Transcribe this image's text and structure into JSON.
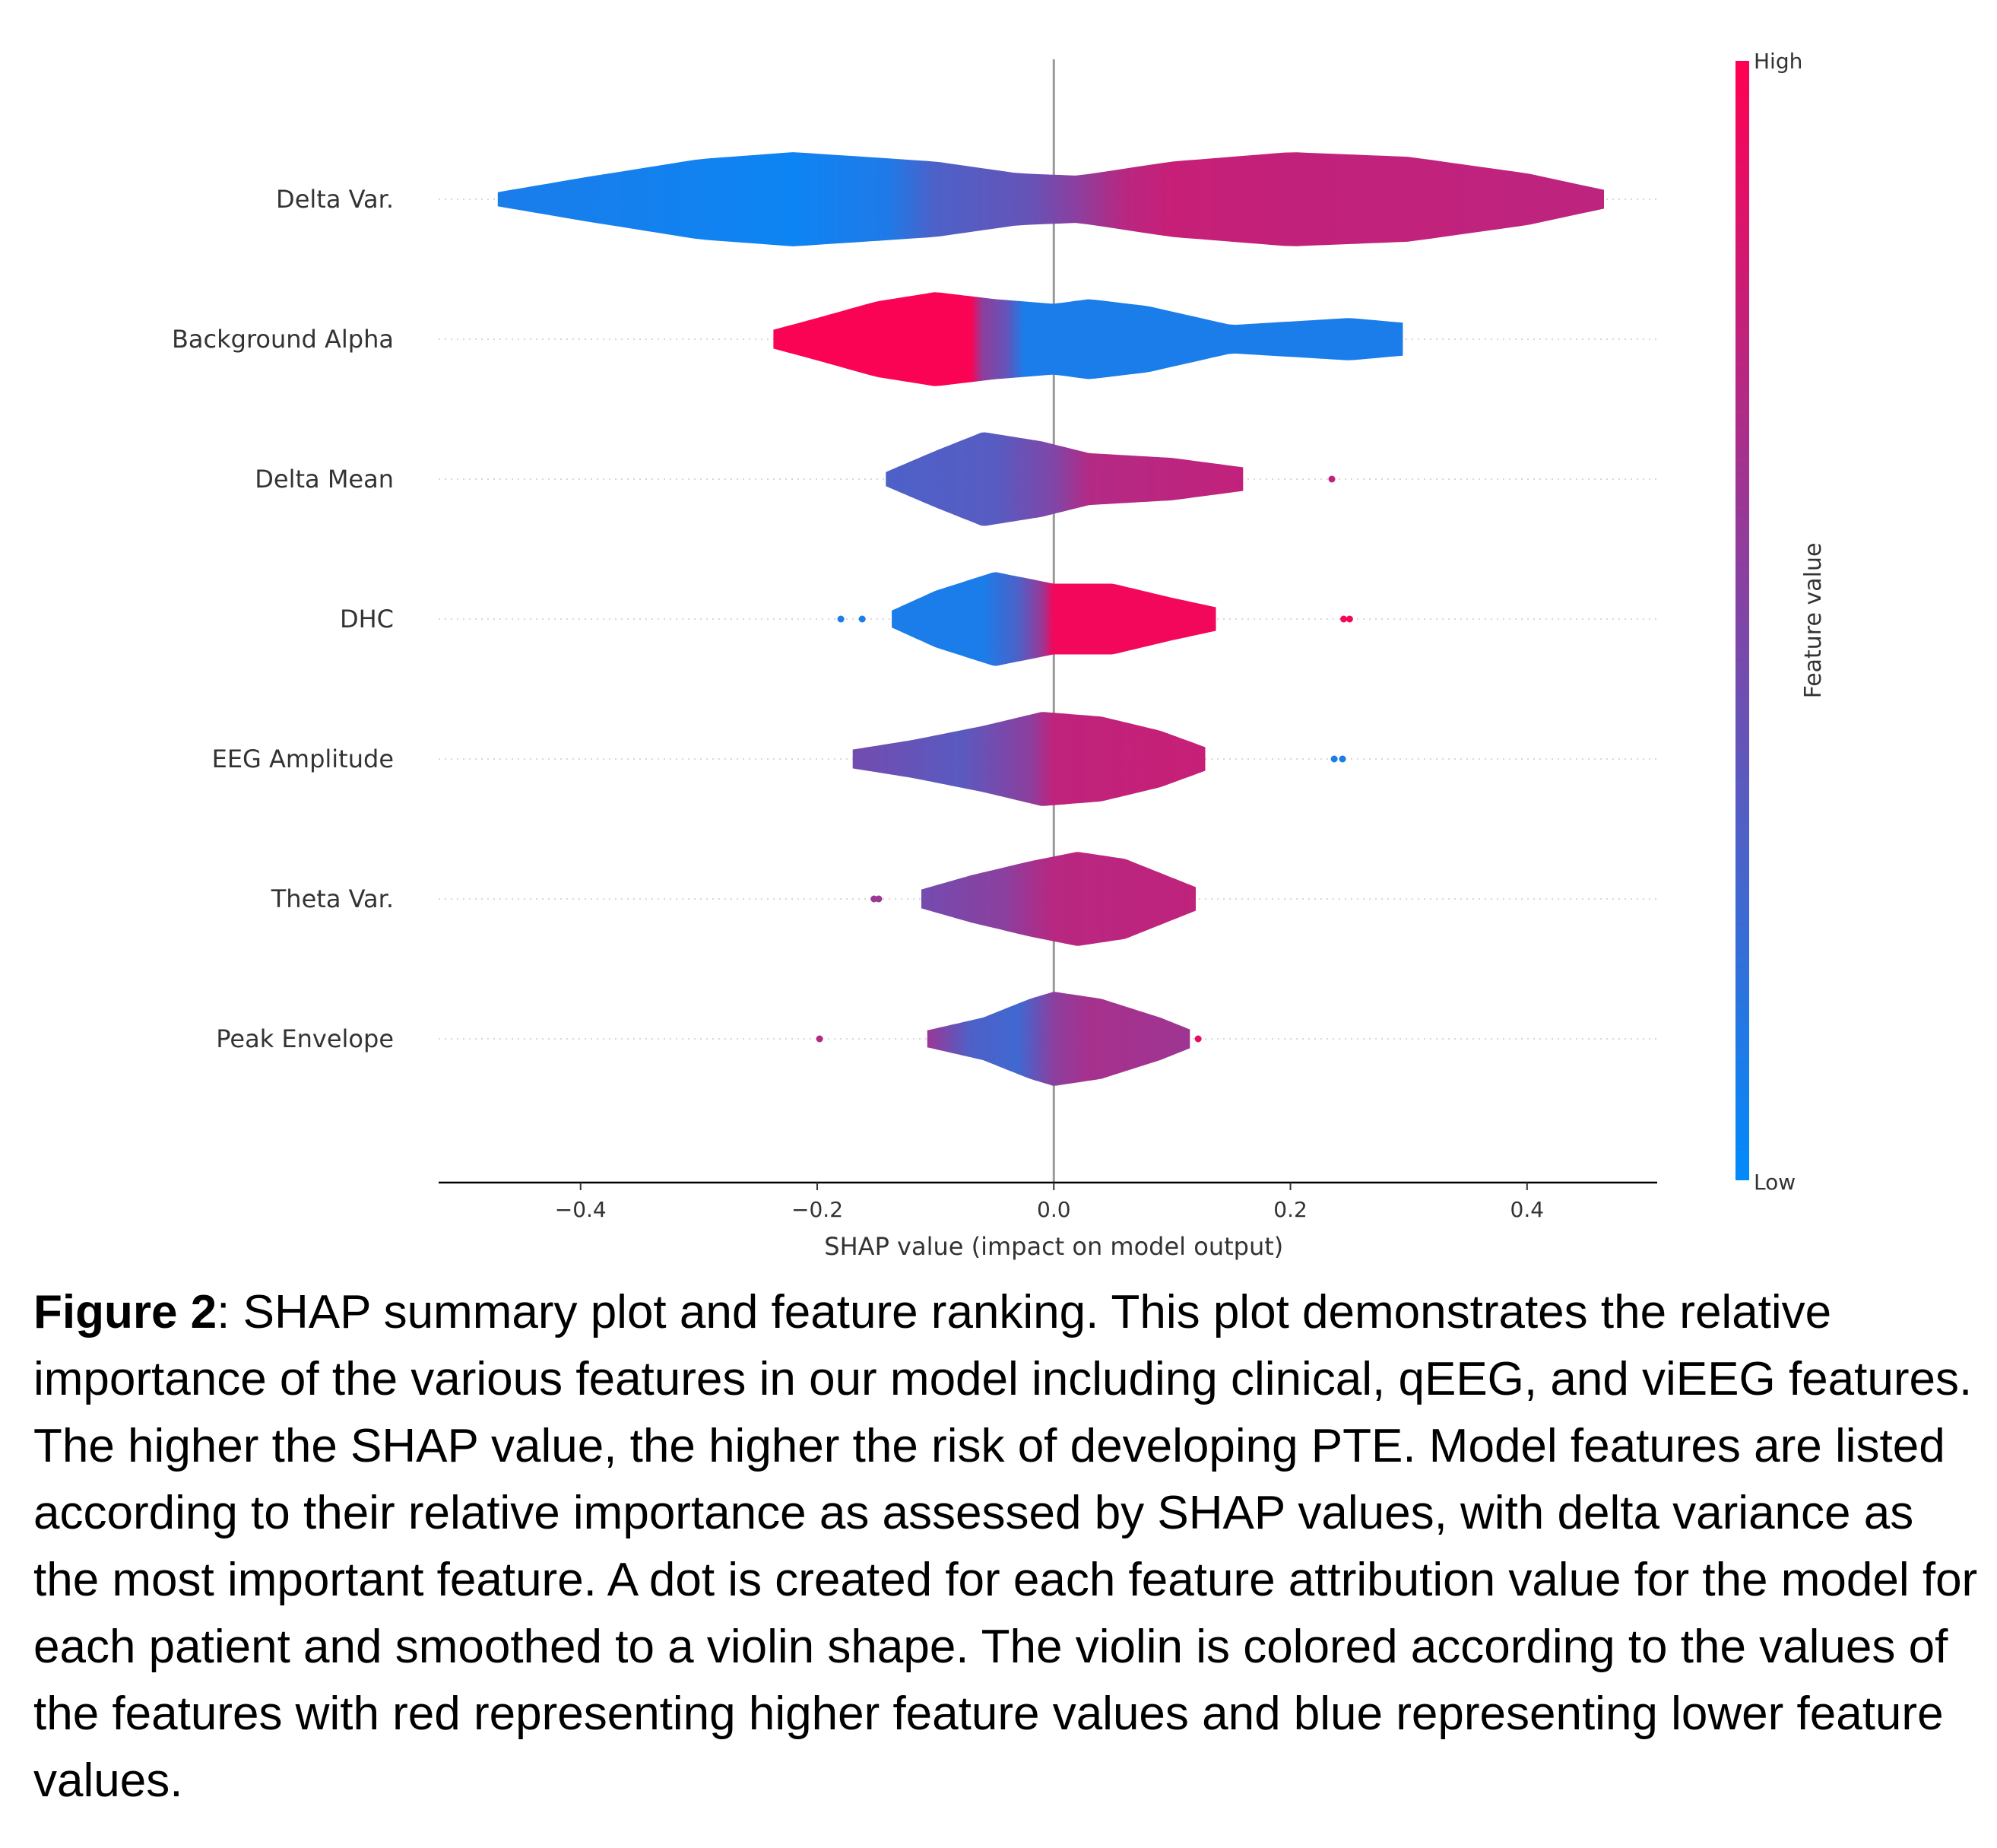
{
  "chart_data": {
    "type": "violin",
    "xlabel": "SHAP value (impact on model output)",
    "ylabel": "",
    "xlim": [
      -0.52,
      0.51
    ],
    "xticks": [
      -0.4,
      -0.2,
      0.0,
      0.2,
      0.4
    ],
    "xtick_labels": [
      "−0.4",
      "−0.2",
      "0.0",
      "0.2",
      "0.4"
    ],
    "features": [
      {
        "name": "Delta Var.",
        "min": -0.47,
        "max": 0.465,
        "outliers": [],
        "width_profile": [
          [
            -0.47,
            0.15
          ],
          [
            -0.4,
            0.45
          ],
          [
            -0.3,
            0.85
          ],
          [
            -0.22,
            1.0
          ],
          [
            -0.1,
            0.8
          ],
          [
            -0.03,
            0.55
          ],
          [
            0.02,
            0.5
          ],
          [
            0.1,
            0.8
          ],
          [
            0.2,
            1.0
          ],
          [
            0.3,
            0.9
          ],
          [
            0.4,
            0.55
          ],
          [
            0.465,
            0.2
          ]
        ],
        "color_profile": [
          [
            -0.47,
            0.1
          ],
          [
            -0.22,
            0.05
          ],
          [
            -0.14,
            0.12
          ],
          [
            -0.1,
            0.3
          ],
          [
            -0.02,
            0.4
          ],
          [
            0.02,
            0.55
          ],
          [
            0.06,
            0.72
          ],
          [
            0.1,
            0.78
          ],
          [
            0.2,
            0.76
          ],
          [
            0.465,
            0.74
          ]
        ]
      },
      {
        "name": "Background Alpha",
        "min": -0.237,
        "max": 0.295,
        "outliers": [],
        "width_profile": [
          [
            -0.237,
            0.2
          ],
          [
            -0.2,
            0.45
          ],
          [
            -0.15,
            0.8
          ],
          [
            -0.1,
            1.0
          ],
          [
            -0.05,
            0.85
          ],
          [
            0.0,
            0.75
          ],
          [
            0.03,
            0.85
          ],
          [
            0.08,
            0.7
          ],
          [
            0.15,
            0.3
          ],
          [
            0.25,
            0.45
          ],
          [
            0.295,
            0.35
          ]
        ],
        "color_profile": [
          [
            -0.237,
            0.98
          ],
          [
            -0.07,
            0.98
          ],
          [
            -0.06,
            0.55
          ],
          [
            -0.04,
            0.4
          ],
          [
            -0.025,
            0.1
          ],
          [
            0.295,
            0.1
          ]
        ]
      },
      {
        "name": "Delta Mean",
        "min": -0.142,
        "max": 0.16,
        "outliers": [
          [
            0.235,
            0.75
          ]
        ],
        "width_profile": [
          [
            -0.142,
            0.15
          ],
          [
            -0.1,
            0.6
          ],
          [
            -0.06,
            1.0
          ],
          [
            -0.01,
            0.8
          ],
          [
            0.03,
            0.55
          ],
          [
            0.1,
            0.45
          ],
          [
            0.16,
            0.25
          ]
        ],
        "color_profile": [
          [
            -0.142,
            0.3
          ],
          [
            -0.05,
            0.34
          ],
          [
            0.0,
            0.5
          ],
          [
            0.03,
            0.7
          ],
          [
            0.16,
            0.76
          ]
        ]
      },
      {
        "name": "DHC",
        "min": -0.137,
        "max": 0.137,
        "outliers": [
          [
            -0.18,
            0.1
          ],
          [
            -0.162,
            0.1
          ],
          [
            0.245,
            0.95
          ],
          [
            0.25,
            0.95
          ]
        ],
        "width_profile": [
          [
            -0.137,
            0.18
          ],
          [
            -0.1,
            0.6
          ],
          [
            -0.05,
            1.0
          ],
          [
            -0.03,
            0.9
          ],
          [
            0.0,
            0.75
          ],
          [
            0.05,
            0.75
          ],
          [
            0.1,
            0.45
          ],
          [
            0.137,
            0.25
          ]
        ],
        "color_profile": [
          [
            -0.137,
            0.1
          ],
          [
            -0.06,
            0.1
          ],
          [
            -0.03,
            0.3
          ],
          [
            -0.01,
            0.6
          ],
          [
            0.0,
            0.95
          ],
          [
            0.137,
            0.95
          ]
        ]
      },
      {
        "name": "EEG Amplitude",
        "min": -0.17,
        "max": 0.128,
        "outliers": [
          [
            0.237,
            0.1
          ],
          [
            0.244,
            0.1
          ]
        ],
        "width_profile": [
          [
            -0.17,
            0.2
          ],
          [
            -0.12,
            0.4
          ],
          [
            -0.06,
            0.7
          ],
          [
            -0.01,
            1.0
          ],
          [
            0.04,
            0.9
          ],
          [
            0.09,
            0.6
          ],
          [
            0.128,
            0.25
          ]
        ],
        "color_profile": [
          [
            -0.17,
            0.45
          ],
          [
            -0.08,
            0.35
          ],
          [
            -0.02,
            0.55
          ],
          [
            0.0,
            0.75
          ],
          [
            0.128,
            0.78
          ]
        ]
      },
      {
        "name": "Theta Var.",
        "min": -0.112,
        "max": 0.12,
        "outliers": [
          [
            -0.152,
            0.6
          ],
          [
            -0.148,
            0.6
          ]
        ],
        "width_profile": [
          [
            -0.112,
            0.2
          ],
          [
            -0.07,
            0.5
          ],
          [
            -0.02,
            0.8
          ],
          [
            0.02,
            1.0
          ],
          [
            0.06,
            0.85
          ],
          [
            0.1,
            0.45
          ],
          [
            0.12,
            0.25
          ]
        ],
        "color_profile": [
          [
            -0.112,
            0.45
          ],
          [
            -0.04,
            0.55
          ],
          [
            0.0,
            0.72
          ],
          [
            0.12,
            0.75
          ]
        ]
      },
      {
        "name": "Peak Envelope",
        "min": -0.107,
        "max": 0.115,
        "outliers": [
          [
            -0.198,
            0.7
          ],
          [
            0.122,
            0.9
          ]
        ],
        "width_profile": [
          [
            -0.107,
            0.18
          ],
          [
            -0.06,
            0.45
          ],
          [
            -0.02,
            0.85
          ],
          [
            0.0,
            1.0
          ],
          [
            0.04,
            0.85
          ],
          [
            0.09,
            0.45
          ],
          [
            0.115,
            0.2
          ]
        ],
        "color_profile": [
          [
            -0.107,
            0.6
          ],
          [
            -0.07,
            0.3
          ],
          [
            -0.03,
            0.25
          ],
          [
            0.0,
            0.55
          ],
          [
            0.03,
            0.65
          ],
          [
            0.115,
            0.62
          ]
        ]
      }
    ],
    "colorbar": {
      "label": "Feature value",
      "high_label": "High",
      "low_label": "Low",
      "low_color": "#008bfb",
      "high_color": "#ff0052"
    }
  },
  "caption": {
    "label": "Figure 2",
    "text": ": SHAP summary plot and feature ranking. This plot demonstrates the relative importance of the various features in our model including clinical, qEEG, and viEEG features.  The higher the SHAP value, the higher the risk of developing PTE. Model features are listed according to their relative importance as assessed by SHAP values, with delta variance as the most important feature. A dot is created for each feature attribution value for the model for each patient and smoothed to a violin shape.  The violin is colored according to the values of the features with red representing higher feature values and blue representing lower feature values."
  }
}
